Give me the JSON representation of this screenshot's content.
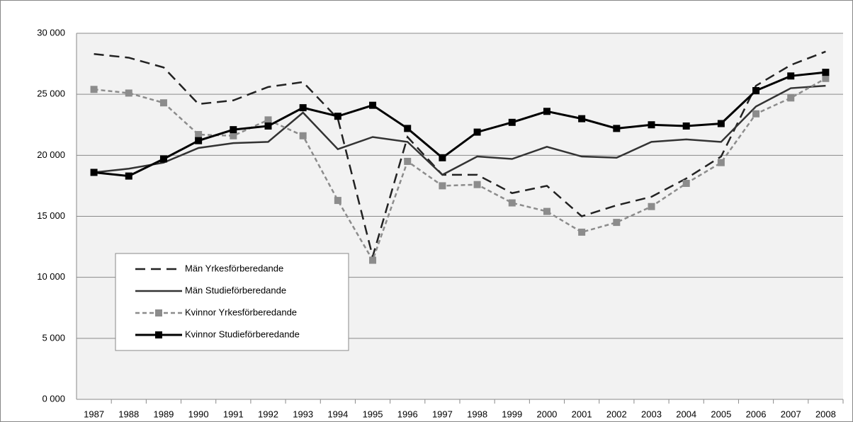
{
  "chart_data": {
    "type": "line",
    "categories": [
      "1987",
      "1988",
      "1989",
      "1990",
      "1991",
      "1992",
      "1993",
      "1994",
      "1995",
      "1996",
      "1997",
      "1998",
      "1999",
      "2000",
      "2001",
      "2002",
      "2003",
      "2004",
      "2005",
      "2006",
      "2007",
      "2008"
    ],
    "series": [
      {
        "name": "Män Yrkesförberedande",
        "color": "#222222",
        "dash": true,
        "marker": false,
        "values": [
          28300,
          28000,
          27200,
          24200,
          24500,
          25600,
          26000,
          23000,
          11700,
          21500,
          18400,
          18400,
          16900,
          17500,
          15000,
          15900,
          16600,
          18100,
          19900,
          25700,
          27400,
          28500
        ]
      },
      {
        "name": "Män Studieförberedande",
        "color": "#333333",
        "dash": false,
        "marker": false,
        "values": [
          18600,
          18900,
          19400,
          20600,
          21000,
          21100,
          23500,
          20500,
          21500,
          21100,
          18400,
          19900,
          19700,
          20700,
          19900,
          19800,
          21100,
          21300,
          21100,
          24000,
          25500,
          25700
        ]
      },
      {
        "name": "Kvinnor Yrkesförberedande",
        "color": "#8c8c8c",
        "dash": true,
        "marker": true,
        "values": [
          25400,
          25100,
          24300,
          21700,
          21600,
          22900,
          21600,
          16300,
          11400,
          19500,
          17500,
          17600,
          16100,
          15400,
          13700,
          14500,
          15800,
          17700,
          19400,
          23400,
          24700,
          26300
        ]
      },
      {
        "name": "Kvinnor Studieförberedande",
        "color": "#000000",
        "dash": false,
        "marker": true,
        "values": [
          18600,
          18300,
          19700,
          21200,
          22100,
          22400,
          23900,
          23200,
          24100,
          22200,
          19800,
          21900,
          22700,
          23600,
          23000,
          22200,
          22500,
          22400,
          22600,
          25300,
          26500,
          26800
        ]
      }
    ],
    "ylim": [
      0,
      30000
    ],
    "yticks": [
      {
        "value": 0,
        "label": "0 000"
      },
      {
        "value": 5000,
        "label": "5 000"
      },
      {
        "value": 10000,
        "label": "10 000"
      },
      {
        "value": 15000,
        "label": "15 000"
      },
      {
        "value": 20000,
        "label": "20 000"
      },
      {
        "value": 25000,
        "label": "25 000"
      },
      {
        "value": 30000,
        "label": "30 000"
      }
    ],
    "grid": true,
    "legend": "lower left"
  }
}
